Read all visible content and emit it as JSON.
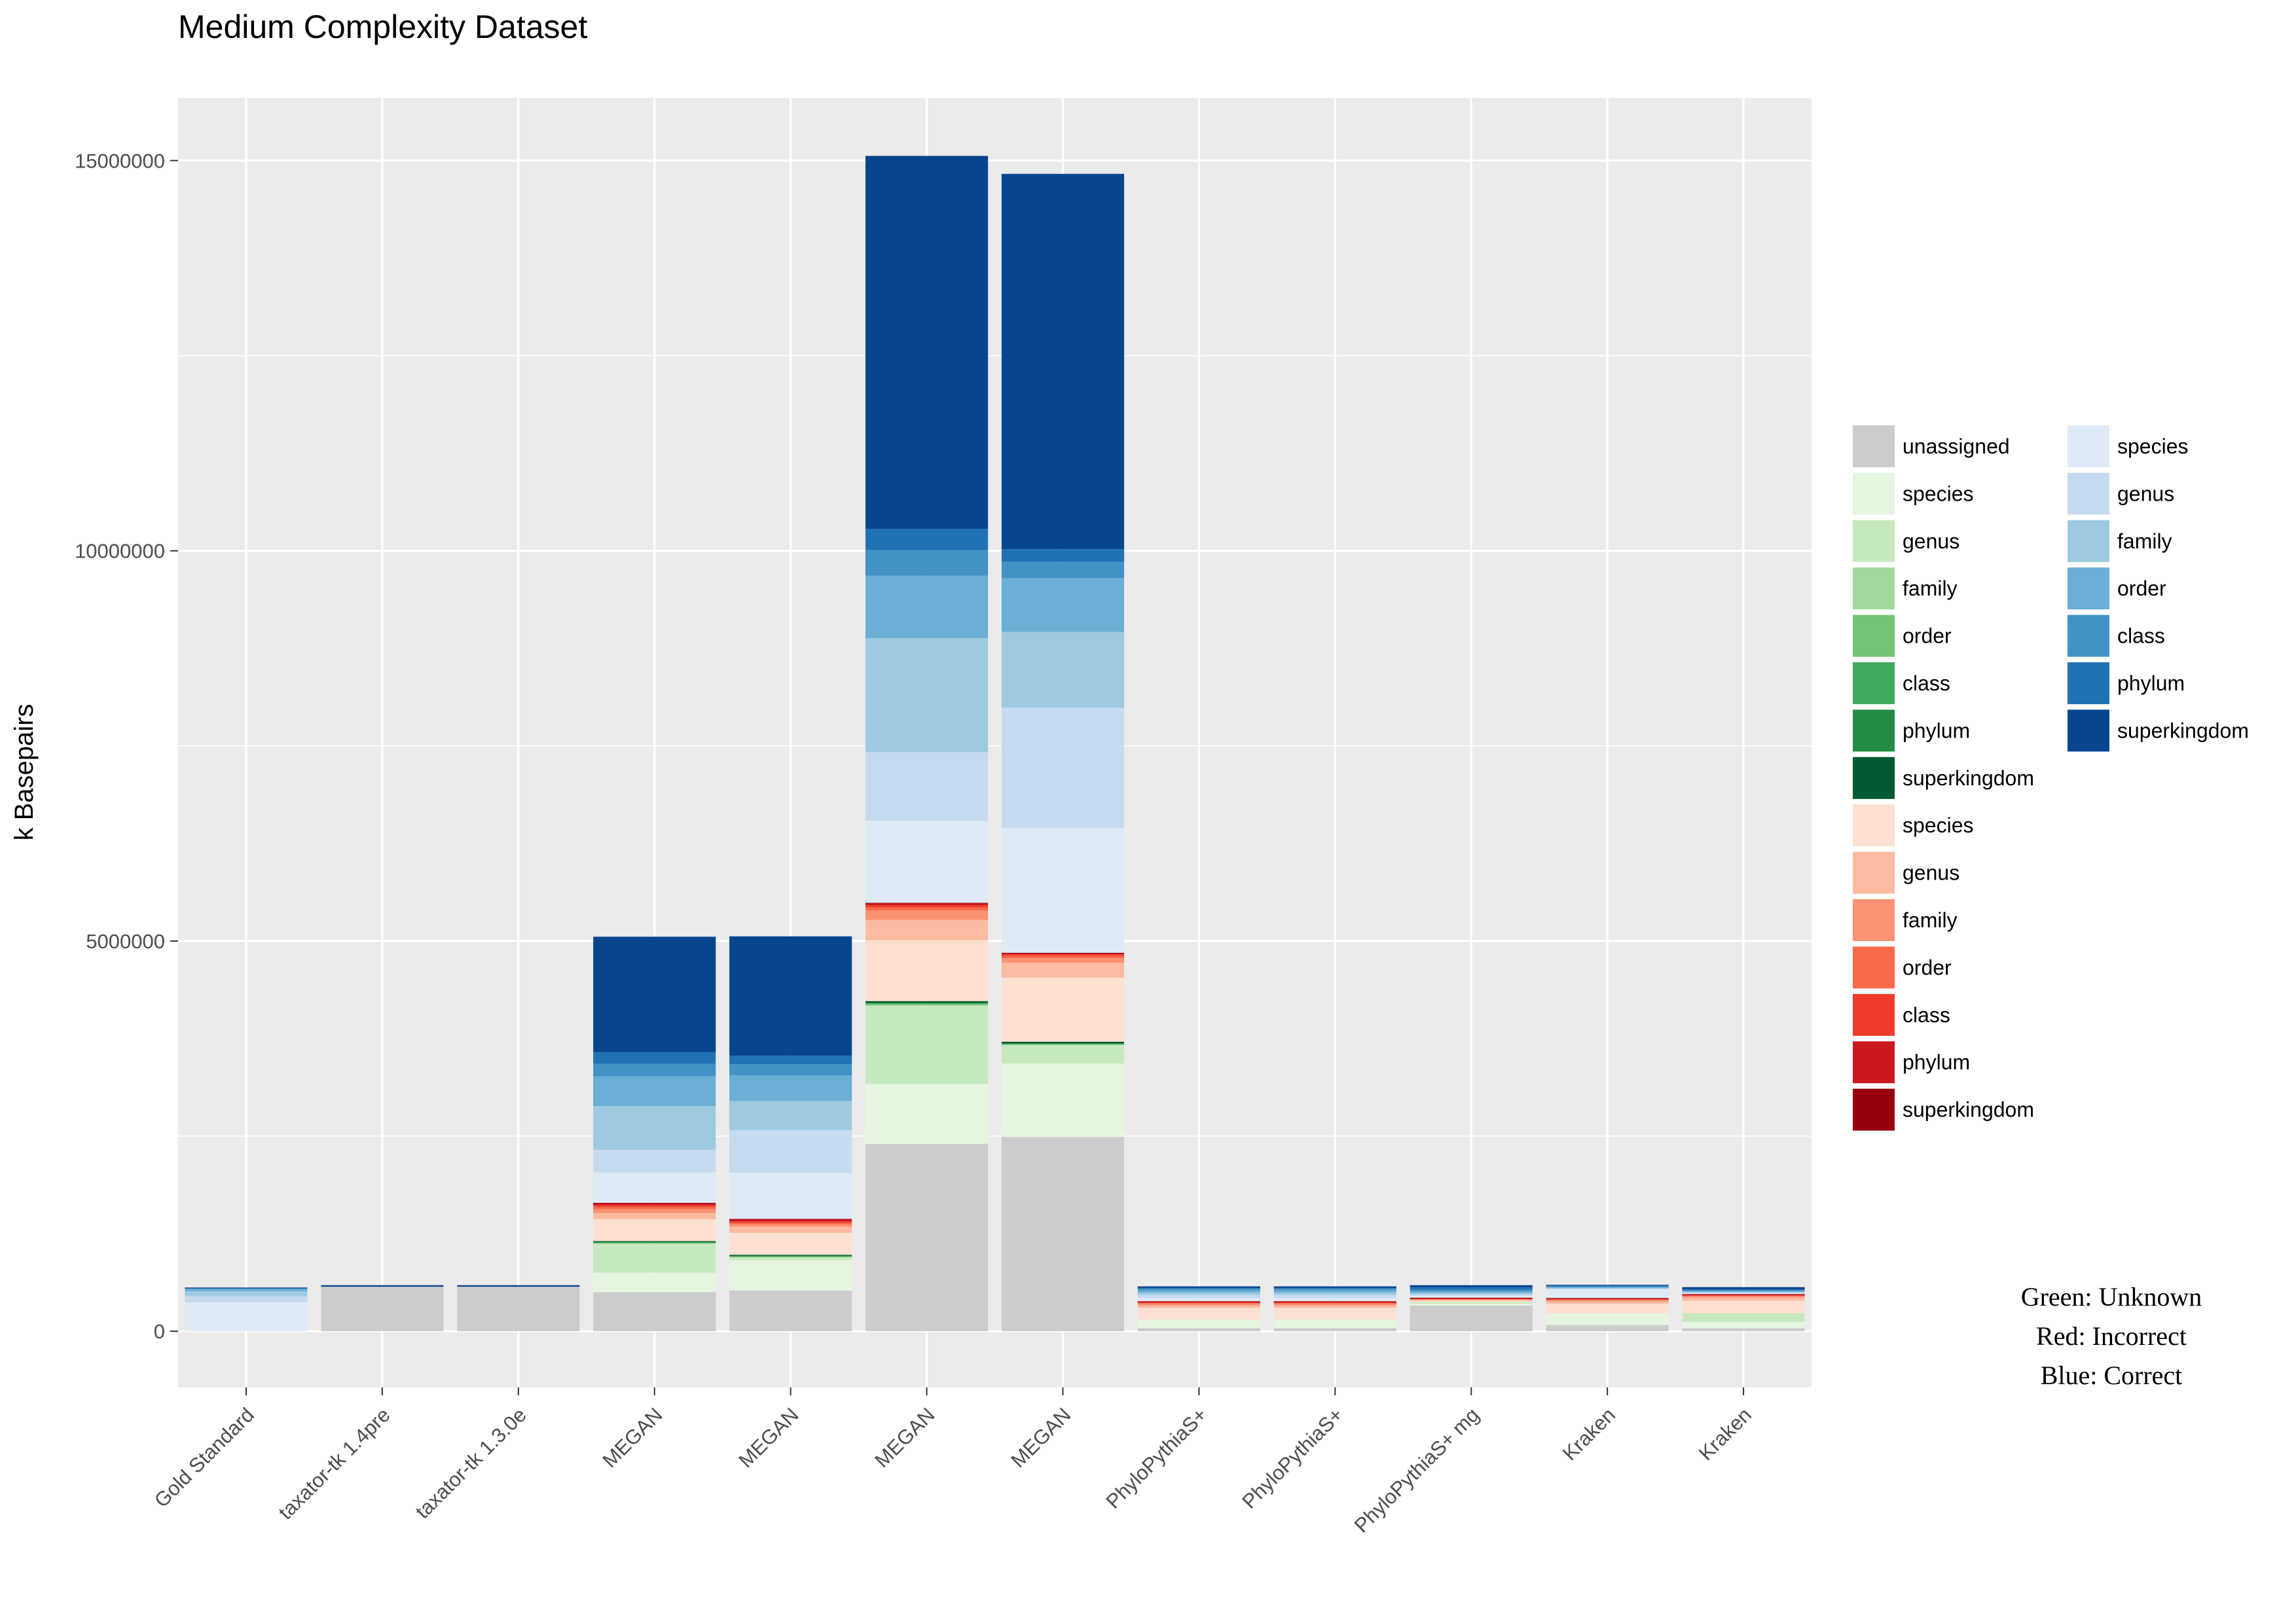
{
  "chart_data": {
    "type": "bar",
    "stacked": true,
    "title": "Medium Complexity Dataset",
    "xlabel": "",
    "ylabel": "k Basepairs",
    "ylim": [
      -720000,
      15800000
    ],
    "yticks": [
      0,
      5000000,
      10000000,
      15000000
    ],
    "ytick_labels": [
      "0",
      "5000000",
      "10000000",
      "15000000"
    ],
    "grid": true,
    "legend_position": "right",
    "categories": [
      "Gold Standard",
      "taxator-tk 1.4pre",
      "taxator-tk 1.3.0e",
      "MEGAN",
      "MEGAN",
      "MEGAN",
      "MEGAN",
      "PhyloPythiaS+",
      "PhyloPythiaS+",
      "PhyloPythiaS+ mg",
      "Kraken",
      "Kraken"
    ],
    "series": [
      {
        "name": "unassigned",
        "group": "Unknown",
        "color": "#cccccc",
        "values": [
          0,
          570000,
          570000,
          500000,
          520000,
          2400000,
          2490000,
          40000,
          40000,
          330000,
          80000,
          40000
        ]
      },
      {
        "name": "species",
        "group": "Unknown",
        "color": "#e5f5e0",
        "values": [
          0,
          0,
          0,
          250000,
          390000,
          770000,
          940000,
          110000,
          110000,
          20000,
          150000,
          80000
        ]
      },
      {
        "name": "genus",
        "group": "Unknown",
        "color": "#c7e9c0",
        "values": [
          0,
          0,
          0,
          370000,
          40000,
          1000000,
          240000,
          0,
          0,
          20000,
          0,
          110000
        ]
      },
      {
        "name": "family",
        "group": "Unknown",
        "color": "#a1d99b",
        "values": [
          0,
          0,
          0,
          10000,
          5000,
          10000,
          5000,
          0,
          0,
          0,
          0,
          0
        ]
      },
      {
        "name": "order",
        "group": "Unknown",
        "color": "#74c476",
        "values": [
          0,
          0,
          0,
          5000,
          5000,
          10000,
          5000,
          0,
          0,
          0,
          0,
          0
        ]
      },
      {
        "name": "class",
        "group": "Unknown",
        "color": "#41ab5d",
        "values": [
          0,
          0,
          0,
          5000,
          5000,
          10000,
          5000,
          0,
          0,
          0,
          0,
          0
        ]
      },
      {
        "name": "phylum",
        "group": "Unknown",
        "color": "#238b45",
        "values": [
          0,
          0,
          0,
          5000,
          5000,
          10000,
          5000,
          0,
          0,
          0,
          0,
          0
        ]
      },
      {
        "name": "superkingdom",
        "group": "Unknown",
        "color": "#005a32",
        "values": [
          0,
          0,
          0,
          10000,
          10000,
          20000,
          20000,
          0,
          0,
          0,
          0,
          0
        ]
      },
      {
        "name": "species",
        "group": "Incorrect",
        "color": "#fee0d2",
        "values": [
          0,
          0,
          0,
          280000,
          280000,
          780000,
          820000,
          150000,
          150000,
          20000,
          120000,
          160000
        ]
      },
      {
        "name": "genus",
        "group": "Incorrect",
        "color": "#fcbba1",
        "values": [
          0,
          0,
          0,
          80000,
          80000,
          260000,
          190000,
          30000,
          30000,
          10000,
          30000,
          40000
        ]
      },
      {
        "name": "family",
        "group": "Incorrect",
        "color": "#fc9272",
        "values": [
          0,
          0,
          0,
          50000,
          30000,
          120000,
          60000,
          20000,
          20000,
          10000,
          20000,
          20000
        ]
      },
      {
        "name": "order",
        "group": "Incorrect",
        "color": "#fb6a4a",
        "values": [
          0,
          0,
          0,
          30000,
          20000,
          40000,
          30000,
          10000,
          10000,
          5000,
          10000,
          10000
        ]
      },
      {
        "name": "class",
        "group": "Incorrect",
        "color": "#ef3b2c",
        "values": [
          0,
          0,
          0,
          20000,
          20000,
          30000,
          20000,
          10000,
          10000,
          5000,
          5000,
          5000
        ]
      },
      {
        "name": "phylum",
        "group": "Incorrect",
        "color": "#cb181d",
        "values": [
          0,
          0,
          0,
          20000,
          20000,
          20000,
          10000,
          10000,
          10000,
          5000,
          5000,
          5000
        ]
      },
      {
        "name": "superkingdom",
        "group": "Incorrect",
        "color": "#99000d",
        "values": [
          0,
          0,
          0,
          10000,
          10000,
          10000,
          10000,
          5000,
          5000,
          5000,
          5000,
          5000
        ]
      },
      {
        "name": "species",
        "group": "Correct",
        "color": "#deebf7",
        "values": [
          370000,
          0,
          0,
          390000,
          590000,
          1050000,
          1600000,
          40000,
          40000,
          20000,
          110000,
          10000
        ]
      },
      {
        "name": "genus",
        "group": "Correct",
        "color": "#c6dbef",
        "values": [
          80000,
          0,
          0,
          290000,
          550000,
          880000,
          1540000,
          40000,
          40000,
          20000,
          10000,
          10000
        ]
      },
      {
        "name": "family",
        "group": "Correct",
        "color": "#9ecae1",
        "values": [
          60000,
          0,
          0,
          560000,
          370000,
          1460000,
          970000,
          30000,
          30000,
          20000,
          10000,
          10000
        ]
      },
      {
        "name": "order",
        "group": "Correct",
        "color": "#6baed6",
        "values": [
          30000,
          0,
          0,
          380000,
          330000,
          800000,
          690000,
          30000,
          30000,
          20000,
          10000,
          10000
        ]
      },
      {
        "name": "class",
        "group": "Correct",
        "color": "#4292c6",
        "values": [
          10000,
          0,
          0,
          160000,
          140000,
          330000,
          210000,
          20000,
          20000,
          20000,
          10000,
          10000
        ]
      },
      {
        "name": "phylum",
        "group": "Correct",
        "color": "#2171b5",
        "values": [
          5000,
          0,
          0,
          150000,
          110000,
          270000,
          160000,
          10000,
          10000,
          30000,
          10000,
          10000
        ]
      },
      {
        "name": "superkingdom",
        "group": "Correct",
        "color": "#08458f",
        "values": [
          5000,
          20000,
          20000,
          1480000,
          1530000,
          4780000,
          4810000,
          20000,
          20000,
          30000,
          10000,
          30000
        ]
      }
    ],
    "legend_columns": [
      [
        "unassigned",
        "species",
        "genus",
        "family",
        "order",
        "class",
        "phylum",
        "superkingdom",
        "species",
        "genus",
        "family",
        "order",
        "class",
        "phylum",
        "superkingdom"
      ],
      [
        "species",
        "genus",
        "family",
        "order",
        "class",
        "phylum",
        "superkingdom"
      ]
    ],
    "annotations": [
      "Green: Unknown",
      "Red: Incorrect",
      "Blue: Correct"
    ]
  }
}
